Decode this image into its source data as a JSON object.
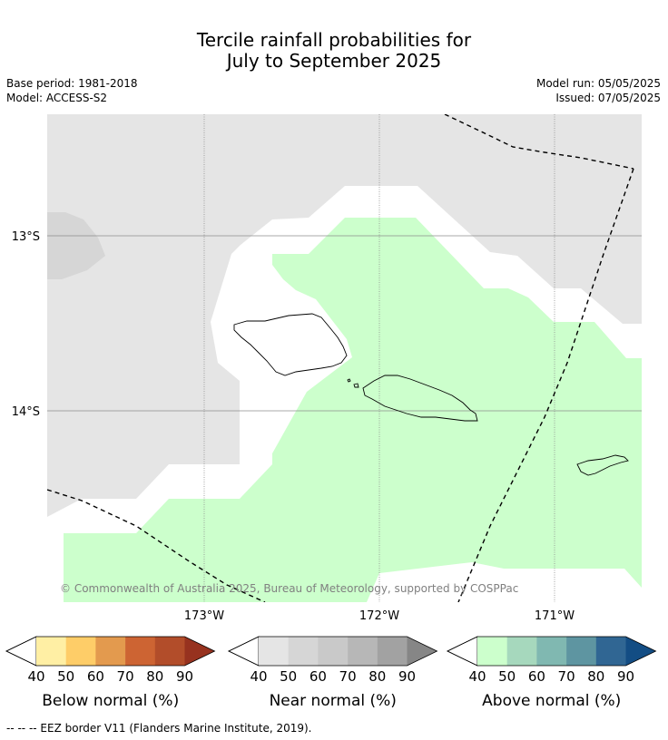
{
  "title": {
    "line1": "Tercile rainfall probabilities for",
    "line2": "July to September 2025"
  },
  "meta": {
    "base_period": "Base period: 1981-2018",
    "model": "Model: ACCESS-S2",
    "model_run": "Model run: 05/05/2025",
    "issued": "Issued: 07/05/2025"
  },
  "map": {
    "lat_labels": [
      "13°S",
      "14°S"
    ],
    "lon_labels": [
      "173°W",
      "172°W",
      "171°W"
    ],
    "copyright": "© Commonwealth of Australia 2025, Bureau of Meteorology, supported by COSPPac"
  },
  "legends": [
    {
      "title": "Below normal (%)",
      "ticks": [
        "40",
        "50",
        "60",
        "70",
        "80",
        "90"
      ],
      "colors": [
        "#ffffff",
        "#ffefa4",
        "#fecd68",
        "#e39a4e",
        "#cd6433",
        "#b24d2a",
        "#97321f"
      ]
    },
    {
      "title": "Near normal (%)",
      "ticks": [
        "40",
        "50",
        "60",
        "70",
        "80",
        "90"
      ],
      "colors": [
        "#ffffff",
        "#e5e5e5",
        "#d6d6d6",
        "#c9c9c9",
        "#b7b7b7",
        "#a2a2a2",
        "#868686"
      ]
    },
    {
      "title": "Above normal (%)",
      "ticks": [
        "40",
        "50",
        "60",
        "70",
        "80",
        "90"
      ],
      "colors": [
        "#ffffff",
        "#ccffcc",
        "#a6d8bd",
        "#80b8b1",
        "#5e95a1",
        "#306693",
        "#134d84"
      ]
    }
  ],
  "footer": "--  --  -- EEZ border V11 (Flanders Marine Institute, 2019)."
}
